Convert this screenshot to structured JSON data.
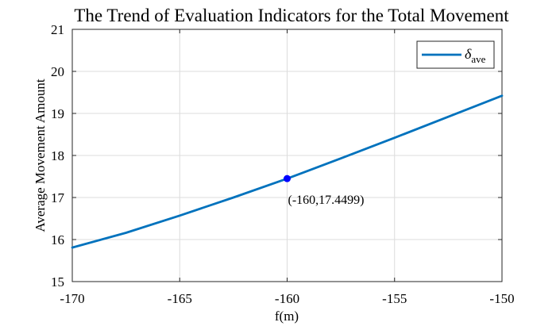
{
  "chart_data": {
    "type": "line",
    "title": "The Trend of Evaluation Indicators for the Total Movement",
    "xlabel": "f(m)",
    "ylabel": "Average Movement Amount",
    "xlim": [
      -170,
      -150
    ],
    "ylim": [
      15,
      21
    ],
    "xticks": [
      "-170",
      "-165",
      "-160",
      "-155",
      "-150"
    ],
    "yticks": [
      "15",
      "16",
      "17",
      "18",
      "19",
      "20",
      "21"
    ],
    "grid": true,
    "legend_position": "top-right",
    "series": [
      {
        "name": "δ",
        "name_subscript": "ave",
        "color": "#0072BD",
        "x": [
          -170,
          -167.5,
          -165,
          -162.5,
          -160,
          -157.5,
          -155,
          -152.5,
          -150
        ],
        "y": [
          15.81,
          16.16,
          16.57,
          17.0,
          17.45,
          17.93,
          18.42,
          18.92,
          19.42
        ]
      }
    ],
    "highlight_point": {
      "x": -160,
      "y": 17.4499,
      "label": "(-160,17.4499)",
      "color": "#0000ff"
    }
  }
}
